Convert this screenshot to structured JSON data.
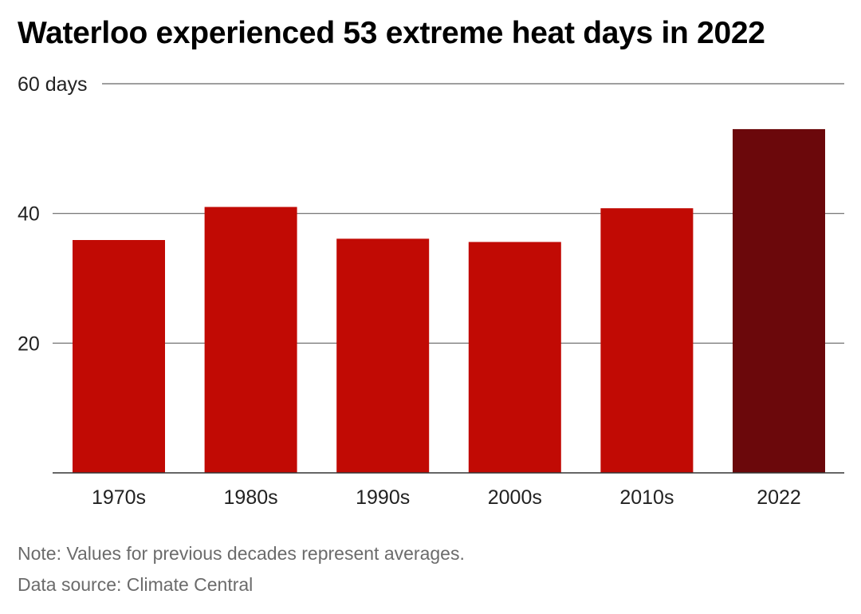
{
  "title": "Waterloo experienced 53 extreme heat days in 2022",
  "note": "Note: Values for previous decades represent averages.",
  "source": "Data source: Climate Central",
  "colors": {
    "bar": "#c10a04",
    "highlight": "#6b080b",
    "grid": "#666666",
    "tick_text": "#222222"
  },
  "chart_data": {
    "type": "bar",
    "categories": [
      "1970s",
      "1980s",
      "1990s",
      "2000s",
      "2010s",
      "2022"
    ],
    "values": [
      35.9,
      41,
      36.1,
      35.6,
      40.8,
      53
    ],
    "highlight_index": 5,
    "ylim": [
      0,
      60
    ],
    "yticks": [
      20,
      40,
      60
    ],
    "ytick_labels": [
      "20",
      "40",
      "60 days"
    ],
    "xlabel": "",
    "ylabel": "",
    "grid": true
  }
}
